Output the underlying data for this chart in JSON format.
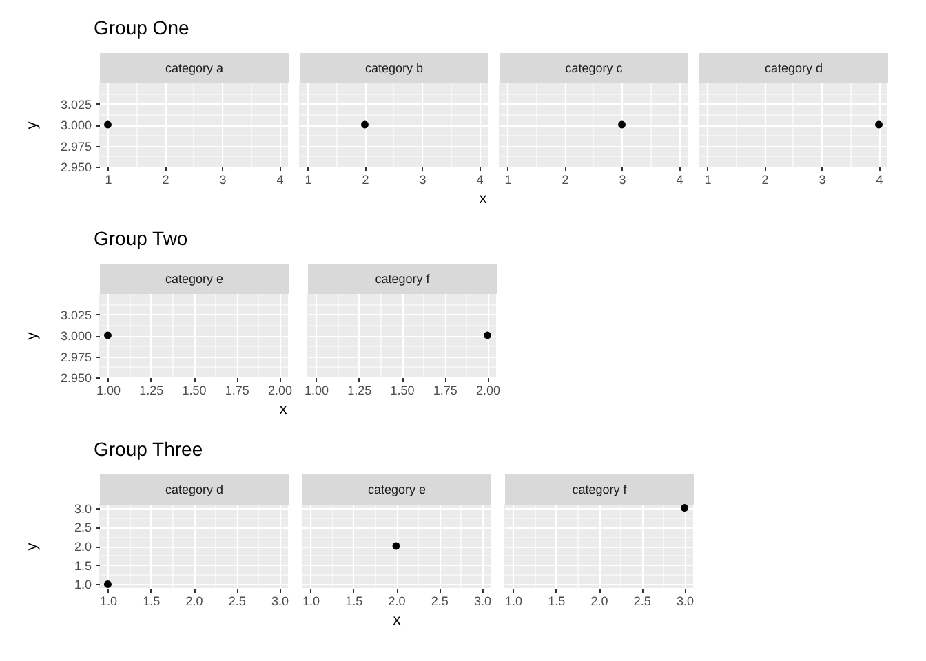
{
  "chart_data": [
    {
      "type": "scatter",
      "title": "Group One",
      "subtitle": "category a",
      "x": [
        1
      ],
      "values": [
        3
      ],
      "color": "#000000",
      "marker": "circle",
      "xlim": [
        0.85,
        4.15
      ],
      "ylim": [
        2.95,
        3.05
      ],
      "xticks": [
        1,
        2,
        3,
        4
      ],
      "yticks": [
        {
          "value": 2.95,
          "label": "2.950"
        },
        {
          "value": 2.975,
          "label": "2.975"
        },
        {
          "value": 3,
          "label": "3.000"
        },
        {
          "value": 3.025,
          "label": "3.025"
        }
      ],
      "ylabel": "y",
      "grid": true
    },
    {
      "type": "scatter",
      "subtitle": "category b",
      "x": [
        2
      ],
      "values": [
        3
      ],
      "color": "#000000",
      "marker": "circle",
      "xlim": [
        0.85,
        4.15
      ],
      "ylim": [
        2.95,
        3.05
      ],
      "xticks": [
        1,
        2,
        3,
        4
      ],
      "yticks": [
        2.95,
        2.975,
        3,
        3.025
      ],
      "xlabel": "x",
      "grid": true,
      "tick_labels": "x"
    },
    {
      "type": "scatter",
      "subtitle": "category c",
      "x": [
        3
      ],
      "values": [
        3
      ],
      "color": "#000000",
      "marker": "circle",
      "xlim": [
        0.85,
        4.15
      ],
      "ylim": [
        2.95,
        3.05
      ],
      "xticks": [
        1,
        2,
        3,
        4
      ],
      "yticks": [
        2.95,
        2.975,
        3,
        3.025
      ],
      "grid": true,
      "tick_labels": "x"
    },
    {
      "type": "scatter",
      "subtitle": "category d",
      "x": [
        4
      ],
      "values": [
        3
      ],
      "color": "#000000",
      "marker": "circle",
      "xlim": [
        0.85,
        4.15
      ],
      "ylim": [
        2.95,
        3.05
      ],
      "xticks": [
        1,
        2,
        3,
        4
      ],
      "yticks": [
        2.95,
        2.975,
        3,
        3.025
      ],
      "grid": true,
      "tick_labels": "x"
    },
    {
      "type": "scatter",
      "title": "Group Two",
      "subtitle": "category e",
      "x": [
        1
      ],
      "values": [
        3
      ],
      "color": "#000000",
      "marker": "circle",
      "xlim": [
        0.95,
        2.05
      ],
      "ylim": [
        2.95,
        3.05
      ],
      "xticks": [
        {
          "value": 1,
          "label": "1.00"
        },
        {
          "value": 1.25,
          "label": "1.25"
        },
        {
          "value": 1.5,
          "label": "1.50"
        },
        {
          "value": 1.75,
          "label": "1.75"
        },
        {
          "value": 2,
          "label": "2.00"
        }
      ],
      "yticks": [
        {
          "value": 2.95,
          "label": "2.950"
        },
        {
          "value": 2.975,
          "label": "2.975"
        },
        {
          "value": 3,
          "label": "3.000"
        },
        {
          "value": 3.025,
          "label": "3.025"
        }
      ],
      "xlabel": "x",
      "ylabel": "y",
      "grid": true
    },
    {
      "type": "scatter",
      "subtitle": "category f",
      "x": [
        2
      ],
      "values": [
        3
      ],
      "color": "#000000",
      "marker": "circle",
      "xlim": [
        0.95,
        2.05
      ],
      "ylim": [
        2.95,
        3.05
      ],
      "xticks": [
        {
          "value": 1,
          "label": "1.00"
        },
        {
          "value": 1.25,
          "label": "1.25"
        },
        {
          "value": 1.5,
          "label": "1.50"
        },
        {
          "value": 1.75,
          "label": "1.75"
        },
        {
          "value": 2,
          "label": "2.00"
        }
      ],
      "yticks": [
        2.95,
        2.975,
        3,
        3.025
      ],
      "grid": true,
      "tick_labels": "x"
    },
    {
      "type": "scatter",
      "title": "Group Three",
      "subtitle": "category d",
      "x": [
        1
      ],
      "values": [
        1
      ],
      "color": "#000000",
      "marker": "circle",
      "xlim": [
        0.9,
        3.1
      ],
      "ylim": [
        0.9,
        3.1
      ],
      "xticks": [
        {
          "value": 1,
          "label": "1.0"
        },
        {
          "value": 1.5,
          "label": "1.5"
        },
        {
          "value": 2,
          "label": "2.0"
        },
        {
          "value": 2.5,
          "label": "2.5"
        },
        {
          "value": 3,
          "label": "3.0"
        }
      ],
      "yticks": [
        {
          "value": 1,
          "label": "1.0"
        },
        {
          "value": 1.5,
          "label": "1.5"
        },
        {
          "value": 2,
          "label": "2.0"
        },
        {
          "value": 2.5,
          "label": "2.5"
        },
        {
          "value": 3,
          "label": "3.0"
        }
      ],
      "ylabel": "y",
      "grid": true
    },
    {
      "type": "scatter",
      "subtitle": "category e",
      "x": [
        2
      ],
      "values": [
        2
      ],
      "color": "#000000",
      "marker": "circle",
      "xlim": [
        0.9,
        3.1
      ],
      "ylim": [
        0.9,
        3.1
      ],
      "xticks": [
        {
          "value": 1,
          "label": "1.0"
        },
        {
          "value": 1.5,
          "label": "1.5"
        },
        {
          "value": 2,
          "label": "2.0"
        },
        {
          "value": 2.5,
          "label": "2.5"
        },
        {
          "value": 3,
          "label": "3.0"
        }
      ],
      "yticks": [
        1,
        1.5,
        2,
        2.5,
        3
      ],
      "xlabel": "x",
      "grid": true,
      "tick_labels": "x"
    },
    {
      "type": "scatter",
      "subtitle": "category f",
      "x": [
        3
      ],
      "values": [
        3
      ],
      "color": "#000000",
      "marker": "circle",
      "xlim": [
        0.9,
        3.1
      ],
      "ylim": [
        0.9,
        3.1
      ],
      "xticks": [
        {
          "value": 1,
          "label": "1.0"
        },
        {
          "value": 1.5,
          "label": "1.5"
        },
        {
          "value": 2,
          "label": "2.0"
        },
        {
          "value": 2.5,
          "label": "2.5"
        },
        {
          "value": 3,
          "label": "3.0"
        }
      ],
      "yticks": [
        1,
        1.5,
        2,
        2.5,
        3
      ],
      "grid": true,
      "tick_labels": "x"
    }
  ]
}
